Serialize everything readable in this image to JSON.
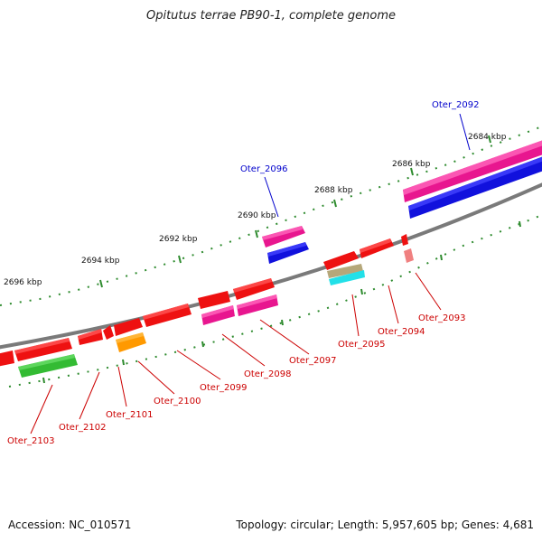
{
  "title": "Opitutus terrae PB90-1, complete genome",
  "footer": {
    "accession": "Accession: NC_010571",
    "summary": "Topology: circular; Length: 5,957,605 bp; Genes: 4,681"
  },
  "colors": {
    "backbone": "#7a7a7a",
    "tick": "#2e8b2e",
    "gene_label_blue": "#0000cc",
    "gene_label_red": "#cc0000",
    "red": "#ee1111",
    "magenta": "#e8168f",
    "blue": "#1111dd",
    "green": "#33bb33",
    "orange": "#ff9900",
    "tan": "#b5a77a",
    "cyan": "#22e0e8",
    "pink": "#f08080"
  },
  "kbp_labels": [
    "2684 kbp",
    "2686 kbp",
    "2688 kbp",
    "2690 kbp",
    "2692 kbp",
    "2694 kbp",
    "2696 kbp"
  ],
  "gene_labels": [
    {
      "text": "Oter_2092",
      "color": "blue"
    },
    {
      "text": "Oter_2096",
      "color": "blue"
    },
    {
      "text": "Oter_2093",
      "color": "red"
    },
    {
      "text": "Oter_2094",
      "color": "red"
    },
    {
      "text": "Oter_2095",
      "color": "red"
    },
    {
      "text": "Oter_2097",
      "color": "red"
    },
    {
      "text": "Oter_2098",
      "color": "red"
    },
    {
      "text": "Oter_2099",
      "color": "red"
    },
    {
      "text": "Oter_2100",
      "color": "red"
    },
    {
      "text": "Oter_2101",
      "color": "red"
    },
    {
      "text": "Oter_2102",
      "color": "red"
    },
    {
      "text": "Oter_2103",
      "color": "red"
    }
  ]
}
